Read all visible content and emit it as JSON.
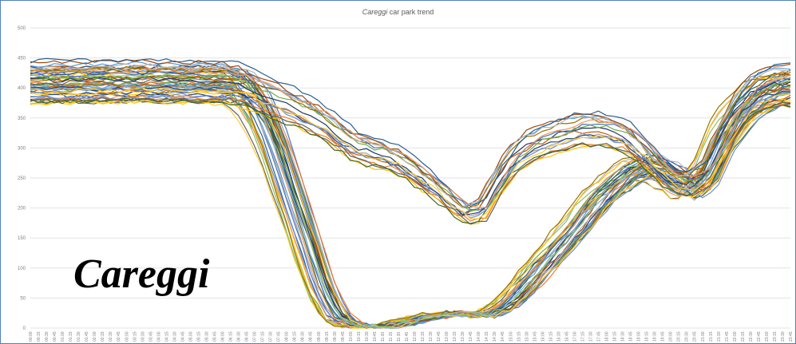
{
  "title_italic": "Careggi",
  "title_rest": " car park trend",
  "overlay_label": "Careggi",
  "chart_data": {
    "type": "line",
    "title": "Careggi car park trend",
    "xlabel": "",
    "ylabel": "",
    "ylim": [
      0,
      500
    ],
    "yticks": [
      0,
      50,
      100,
      150,
      200,
      250,
      300,
      350,
      400,
      450,
      500
    ],
    "grid": true,
    "legend": "none",
    "x": [
      "00:00",
      "00:15",
      "00:30",
      "00:45",
      "01:00",
      "01:15",
      "01:30",
      "01:45",
      "02:00",
      "02:15",
      "02:30",
      "02:45",
      "03:00",
      "03:15",
      "03:30",
      "03:45",
      "04:00",
      "04:15",
      "04:30",
      "04:45",
      "05:00",
      "05:15",
      "05:30",
      "05:45",
      "06:00",
      "06:15",
      "06:30",
      "06:45",
      "07:00",
      "07:15",
      "07:30",
      "07:45",
      "08:00",
      "08:15",
      "08:30",
      "08:45",
      "09:00",
      "09:15",
      "09:30",
      "09:45",
      "10:00",
      "10:15",
      "10:30",
      "10:45",
      "11:00",
      "11:15",
      "11:30",
      "11:45",
      "12:00",
      "12:15",
      "12:30",
      "12:45",
      "13:00",
      "13:15",
      "13:30",
      "13:45",
      "14:00",
      "14:15",
      "14:30",
      "14:45",
      "15:00",
      "15:15",
      "15:30",
      "15:45",
      "16:00",
      "16:15",
      "16:30",
      "16:45",
      "17:00",
      "17:15",
      "17:30",
      "17:45",
      "18:00",
      "18:15",
      "18:30",
      "18:45",
      "19:00",
      "19:15",
      "19:30",
      "19:45",
      "20:00",
      "20:15",
      "20:30",
      "20:45",
      "21:00",
      "21:15",
      "21:30",
      "21:45",
      "22:00",
      "22:15",
      "22:30",
      "22:45",
      "23:00",
      "23:15",
      "23:30",
      "23:45"
    ],
    "groups": [
      {
        "count": 38,
        "keys": [
          [
            0,
            400
          ],
          [
            6,
            400
          ],
          [
            12,
            402
          ],
          [
            18,
            402
          ],
          [
            24,
            400
          ],
          [
            26,
            395
          ],
          [
            28,
            360
          ],
          [
            30,
            300
          ],
          [
            32,
            220
          ],
          [
            34,
            140
          ],
          [
            36,
            60
          ],
          [
            38,
            15
          ],
          [
            40,
            3
          ],
          [
            44,
            2
          ],
          [
            48,
            15
          ],
          [
            52,
            25
          ],
          [
            56,
            20
          ],
          [
            58,
            30
          ],
          [
            60,
            50
          ],
          [
            62,
            80
          ],
          [
            64,
            110
          ],
          [
            66,
            140
          ],
          [
            68,
            170
          ],
          [
            70,
            205
          ],
          [
            72,
            230
          ],
          [
            74,
            250
          ],
          [
            76,
            265
          ],
          [
            78,
            262
          ],
          [
            80,
            245
          ],
          [
            82,
            225
          ],
          [
            84,
            250
          ],
          [
            86,
            310
          ],
          [
            88,
            350
          ],
          [
            90,
            375
          ],
          [
            92,
            388
          ],
          [
            95,
            395
          ]
        ],
        "offset_range": [
          -25,
          35
        ],
        "shift_range": [
          -1.5,
          2.5
        ]
      },
      {
        "count": 18,
        "keys": [
          [
            0,
            420
          ],
          [
            12,
            422
          ],
          [
            24,
            420
          ],
          [
            26,
            412
          ],
          [
            28,
            400
          ],
          [
            30,
            390
          ],
          [
            32,
            378
          ],
          [
            34,
            365
          ],
          [
            36,
            350
          ],
          [
            38,
            330
          ],
          [
            40,
            310
          ],
          [
            42,
            300
          ],
          [
            44,
            295
          ],
          [
            46,
            280
          ],
          [
            48,
            260
          ],
          [
            50,
            240
          ],
          [
            52,
            215
          ],
          [
            54,
            195
          ],
          [
            56,
            200
          ],
          [
            58,
            250
          ],
          [
            60,
            290
          ],
          [
            62,
            310
          ],
          [
            64,
            320
          ],
          [
            66,
            330
          ],
          [
            68,
            338
          ],
          [
            70,
            340
          ],
          [
            72,
            335
          ],
          [
            74,
            325
          ],
          [
            76,
            300
          ],
          [
            78,
            270
          ],
          [
            80,
            250
          ],
          [
            82,
            245
          ],
          [
            84,
            265
          ],
          [
            86,
            320
          ],
          [
            88,
            370
          ],
          [
            90,
            400
          ],
          [
            92,
            412
          ],
          [
            95,
            415
          ]
        ],
        "offset_range": [
          -45,
          30
        ],
        "shift_range": [
          -1,
          1.5
        ]
      }
    ]
  }
}
